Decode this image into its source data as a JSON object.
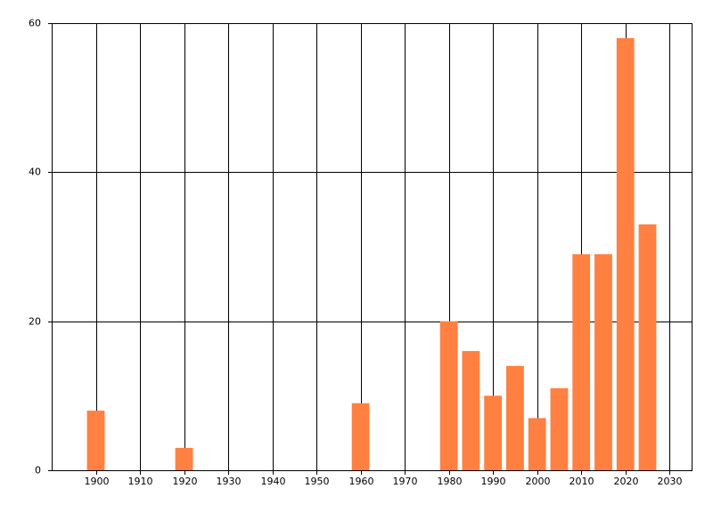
{
  "chart_data": {
    "type": "bar",
    "x": [
      1900,
      1920,
      1960,
      1980,
      1985,
      1990,
      1995,
      2000,
      2005,
      2010,
      2015,
      2020,
      2025
    ],
    "values": [
      8,
      3,
      9,
      20,
      16,
      10,
      14,
      7,
      11,
      29,
      29,
      58,
      33
    ],
    "color": "#ff8040",
    "xlim": [
      1890,
      2035
    ],
    "xticks": [
      1900,
      1910,
      1920,
      1930,
      1940,
      1950,
      1960,
      1970,
      1980,
      1990,
      2000,
      2010,
      2020,
      2030
    ],
    "ylim": [
      0,
      60
    ],
    "yticks": [
      0,
      20,
      40,
      60
    ],
    "grid": true
  }
}
